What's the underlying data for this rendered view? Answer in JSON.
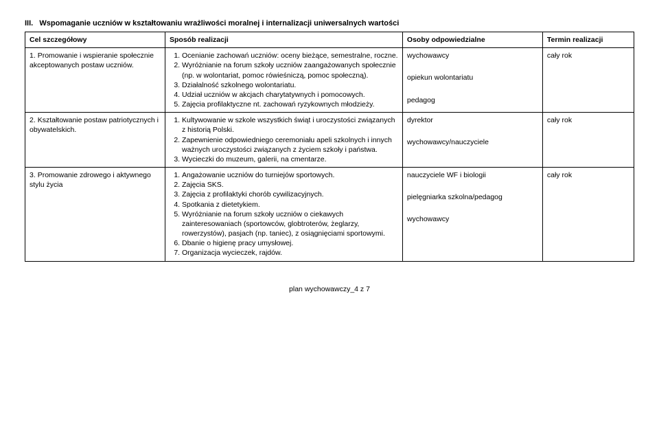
{
  "section": {
    "number": "III.",
    "title": "Wspomaganie uczniów w kształtowaniu wrażliwości moralnej i internalizacji uniwersalnych wartości"
  },
  "headers": {
    "col1": "Cel szczegółowy",
    "col2": "Sposób realizacji",
    "col3": "Osoby odpowiedzialne",
    "col4": "Termin realizacji"
  },
  "rows": [
    {
      "goal_num": "1.",
      "goal_text": "Promowanie i wspieranie społecznie akceptowanych postaw uczniów.",
      "methods": [
        "Ocenianie zachowań uczniów: oceny bieżące, semestralne, roczne.",
        "Wyróżnianie na forum szkoły uczniów zaangażowanych społecznie (np. w wolontariat, pomoc rówieśniczą, pomoc społeczną).",
        "Działalność szkolnego wolontariatu.",
        "Udział uczniów w akcjach charytatywnych i pomocowych.",
        "Zajęcia profilaktyczne nt. zachowań ryzykownych młodzieży."
      ],
      "responsible": [
        "wychowawcy",
        "opiekun wolontariatu",
        "pedagog"
      ],
      "term": "cały rok"
    },
    {
      "goal_num": "2.",
      "goal_text": "Kształtowanie postaw patriotycznych i obywatelskich.",
      "methods": [
        "Kultywowanie w szkole wszystkich świąt i uroczystości związanych z historią Polski.",
        "Zapewnienie odpowiedniego ceremoniału apeli szkolnych i innych ważnych uroczystości związanych z życiem szkoły i państwa.",
        "Wycieczki do muzeum, galerii, na cmentarze."
      ],
      "responsible": [
        "dyrektor",
        "wychowawcy/nauczyciele"
      ],
      "term": "cały rok"
    },
    {
      "goal_num": "3.",
      "goal_text": "Promowanie zdrowego i aktywnego stylu życia",
      "methods": [
        "Angażowanie uczniów do turniejów sportowych.",
        "Zajęcia SKS.",
        "Zajęcia z profilaktyki chorób cywilizacyjnych.",
        "Spotkania z dietetykiem.",
        "Wyróżnianie na forum szkoły uczniów o ciekawych zainteresowaniach (sportowców, globtroterów, żeglarzy, rowerzystów), pasjach (np. taniec), z osiągnięciami sportowymi.",
        "Dbanie o higienę pracy umysłowej.",
        "Organizacja wycieczek, rajdów."
      ],
      "responsible": [
        "nauczyciele WF i biologii",
        "pielęgniarka szkolna/pedagog",
        "wychowawcy"
      ],
      "term": "cały rok"
    }
  ],
  "footer": "plan wychowawczy_4 z 7"
}
